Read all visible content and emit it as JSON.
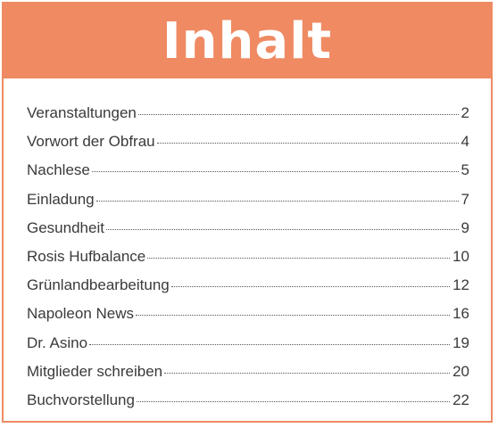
{
  "header": {
    "title": "Inhalt"
  },
  "toc": {
    "entries": [
      {
        "label": "Veranstaltungen",
        "page": "2"
      },
      {
        "label": "Vorwort der Obfrau",
        "page": "4"
      },
      {
        "label": "Nachlese",
        "page": "5"
      },
      {
        "label": "Einladung",
        "page": "7"
      },
      {
        "label": "Gesundheit",
        "page": "9"
      },
      {
        "label": "Rosis Hufbalance",
        "page": "10"
      },
      {
        "label": "Grünlandbearbeitung",
        "page": "12"
      },
      {
        "label": "Napoleon News",
        "page": "16"
      },
      {
        "label": "Dr. Asino",
        "page": "19"
      },
      {
        "label": "Mitglieder schreiben",
        "page": "20"
      },
      {
        "label": "Buchvorstellung",
        "page": "22"
      }
    ]
  },
  "colors": {
    "accent": "#ef8a63",
    "text": "#3a3a3a"
  }
}
